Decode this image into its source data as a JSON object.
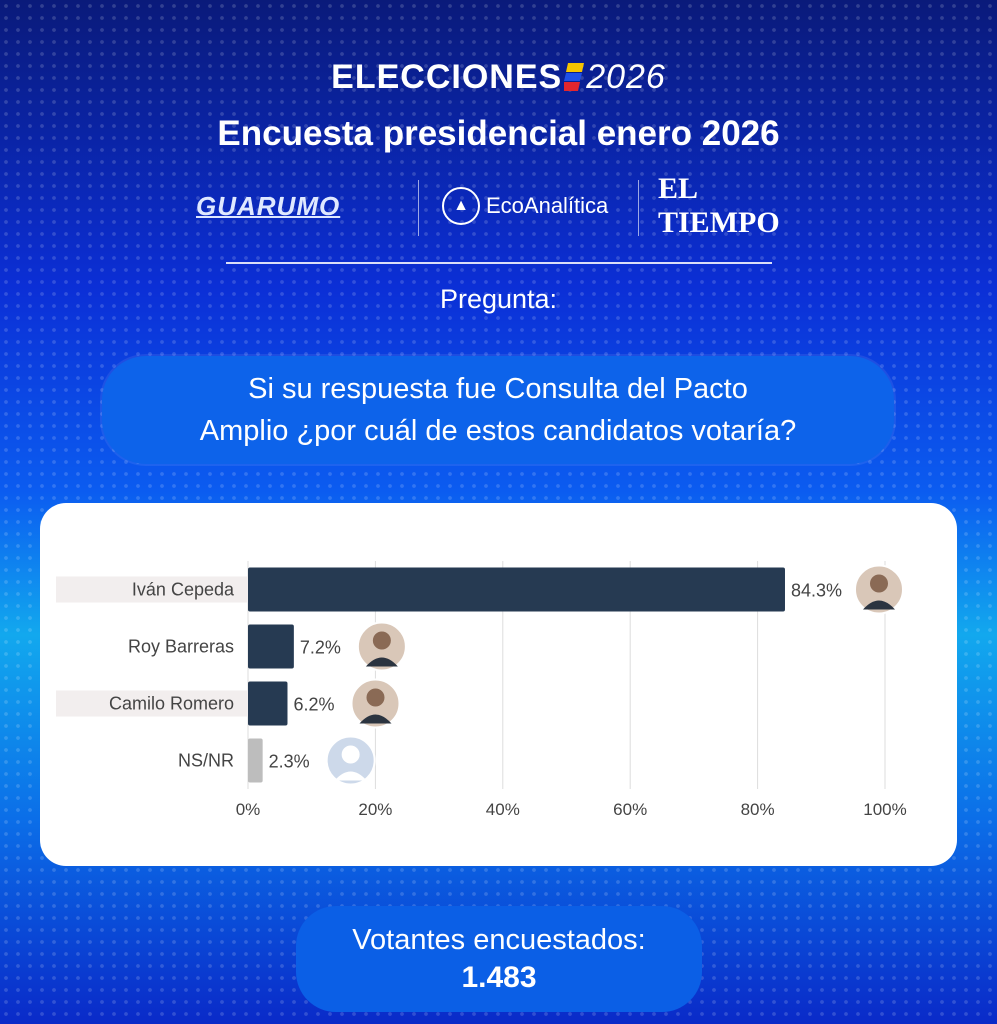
{
  "header": {
    "brand_word": "ELECCIONES",
    "brand_year": "2026",
    "title": "Encuesta presidencial enero 2026"
  },
  "logos": {
    "guarumo": "GUARUMO",
    "ecoanalitica": "EcoAnalítica",
    "eltiempo": "EL TIEMPO"
  },
  "question": {
    "label": "Pregunta:",
    "line1": "Si su respuesta fue Consulta del Pacto",
    "line2": "Amplio ¿por cuál de estos candidatos votaría?"
  },
  "colors": {
    "bar": "#263a52",
    "bar_nsnr": "#bdbdbd",
    "label_band": "#f2eeee",
    "grid": "#dddddd",
    "text": "#444444"
  },
  "chart_data": {
    "type": "bar",
    "orientation": "horizontal",
    "categories": [
      "Iván Cepeda",
      "Roy Barreras",
      "Camilo Romero",
      "NS/NR"
    ],
    "values": [
      84.3,
      7.2,
      6.2,
      2.3
    ],
    "value_labels": [
      "84.3%",
      "7.2%",
      "6.2%",
      "2.3%"
    ],
    "xlim": [
      0,
      100
    ],
    "ticks": [
      0,
      20,
      40,
      60,
      80,
      100
    ],
    "tick_labels": [
      "0%",
      "20%",
      "40%",
      "60%",
      "80%",
      "100%"
    ],
    "grid": true,
    "legend": "none"
  },
  "footer": {
    "voters_label": "Votantes encuestados:",
    "voters_value": "1.483"
  }
}
